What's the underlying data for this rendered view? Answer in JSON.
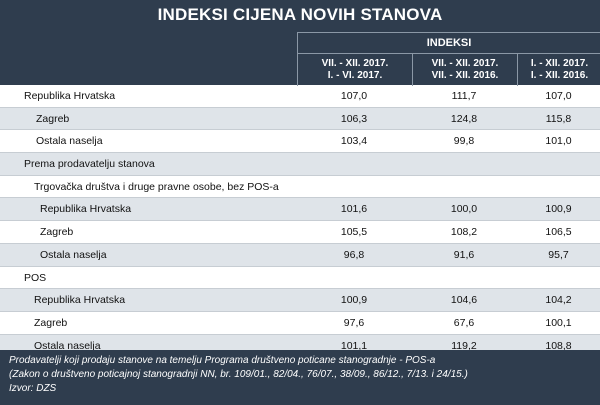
{
  "title": "INDEKSI CIJENA NOVIH STANOVA",
  "header": {
    "group": "INDEKSI",
    "columns": [
      {
        "line1": "VII. - XII. 2017.",
        "line2": "I. - VI. 2017."
      },
      {
        "line1": "VII. - XII. 2017.",
        "line2": "VII. - XII. 2016."
      },
      {
        "line1": "I. - XII. 2017.",
        "line2": "I. - XII. 2016."
      }
    ]
  },
  "rows": [
    {
      "label": "Republika Hrvatska",
      "v1": "107,0",
      "v2": "111,7",
      "v3": "107,0"
    },
    {
      "label": "Zagreb",
      "v1": "106,3",
      "v2": "124,8",
      "v3": "115,8"
    },
    {
      "label": "Ostala naselja",
      "v1": "103,4",
      "v2": "99,8",
      "v3": "101,0"
    },
    {
      "label": "Prema prodavatelju stanova",
      "v1": "",
      "v2": "",
      "v3": ""
    },
    {
      "label": "Trgovačka društva i druge pravne osobe, bez POS-a",
      "v1": "",
      "v2": "",
      "v3": ""
    },
    {
      "label": "Republika Hrvatska",
      "v1": "101,6",
      "v2": "100,0",
      "v3": "100,9"
    },
    {
      "label": "Zagreb",
      "v1": "105,5",
      "v2": "108,2",
      "v3": "106,5"
    },
    {
      "label": "Ostala naselja",
      "v1": "96,8",
      "v2": "91,6",
      "v3": "95,7"
    },
    {
      "label": "POS",
      "v1": "",
      "v2": "",
      "v3": ""
    },
    {
      "label": "Republika Hrvatska",
      "v1": "100,9",
      "v2": "104,6",
      "v3": "104,2"
    },
    {
      "label": "Zagreb",
      "v1": "97,6",
      "v2": "67,6",
      "v3": "100,1"
    },
    {
      "label": "Ostala naselja",
      "v1": "101,1",
      "v2": "119,2",
      "v3": "108,8"
    }
  ],
  "footer": {
    "note1": "Prodavatelji koji prodaju stanove na temelju Programa društveno poticane stanogradnje - POS-a",
    "note2": "(Zakon o društveno poticajnoj stanogradnji NN, br. 109/01., 82/04., 76/07., 38/09., 86/12., 7/13. i 24/15.)",
    "source": "Izvor: DZS"
  }
}
